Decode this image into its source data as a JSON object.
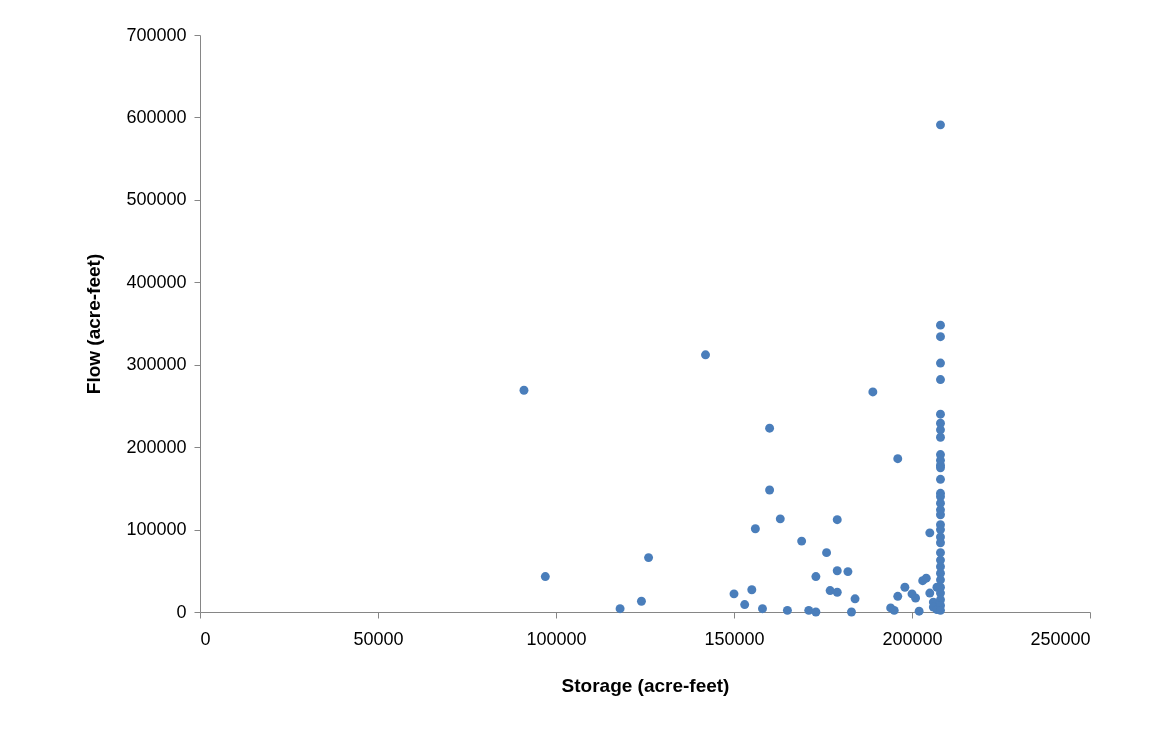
{
  "chart_data": {
    "type": "scatter",
    "xlabel": "Storage (acre-feet)",
    "ylabel": "Flow (acre-feet)",
    "xlim": [
      0,
      250000
    ],
    "xticks": [
      0,
      50000,
      100000,
      150000,
      200000,
      250000
    ],
    "ylim": [
      0,
      700000
    ],
    "yticks": [
      0,
      100000,
      200000,
      300000,
      400000,
      500000,
      600000,
      700000
    ],
    "grid": false,
    "marker": "circle",
    "series": [
      {
        "color": "#4a7ebb",
        "x": [
          91000,
          97000,
          118000,
          124000,
          126000,
          142000,
          150000,
          153000,
          155000,
          156000,
          158000,
          160000,
          160000,
          163000,
          165000,
          169000,
          171000,
          173000,
          173000,
          176000,
          177000,
          179000,
          179000,
          179000,
          182000,
          183000,
          184000,
          189000,
          194000,
          195000,
          196000,
          196000,
          198000,
          200000,
          201000,
          202000,
          203000,
          204000,
          205000,
          205000,
          206000,
          206000,
          207000,
          207000,
          208000,
          208000,
          208000,
          208000,
          208000,
          208000,
          208000,
          208000,
          208000,
          208000,
          208000,
          208000,
          208000,
          208000,
          208000,
          208000,
          208000,
          208000,
          208000,
          208000,
          208000,
          208000,
          208000,
          208000,
          208000,
          208000,
          208000,
          208000,
          208000,
          208000,
          208000,
          208000,
          208000
        ],
        "values": [
          269000,
          43000,
          4000,
          13000,
          66000,
          312000,
          22000,
          9000,
          27000,
          101000,
          4000,
          223000,
          148000,
          113000,
          2000,
          86000,
          2000,
          43000,
          0,
          72000,
          26000,
          50000,
          112000,
          24000,
          49000,
          0,
          16000,
          267000,
          5000,
          2000,
          186000,
          19000,
          30000,
          22000,
          17000,
          1000,
          38000,
          41000,
          96000,
          23000,
          12000,
          6000,
          30000,
          3000,
          591000,
          348000,
          334000,
          302000,
          282000,
          240000,
          229000,
          221000,
          212000,
          191000,
          184000,
          178000,
          175000,
          161000,
          144000,
          140000,
          132000,
          124000,
          118000,
          106000,
          100000,
          91000,
          84000,
          72000,
          63000,
          55000,
          47000,
          39000,
          30000,
          23000,
          15000,
          8000,
          2000
        ]
      }
    ]
  }
}
